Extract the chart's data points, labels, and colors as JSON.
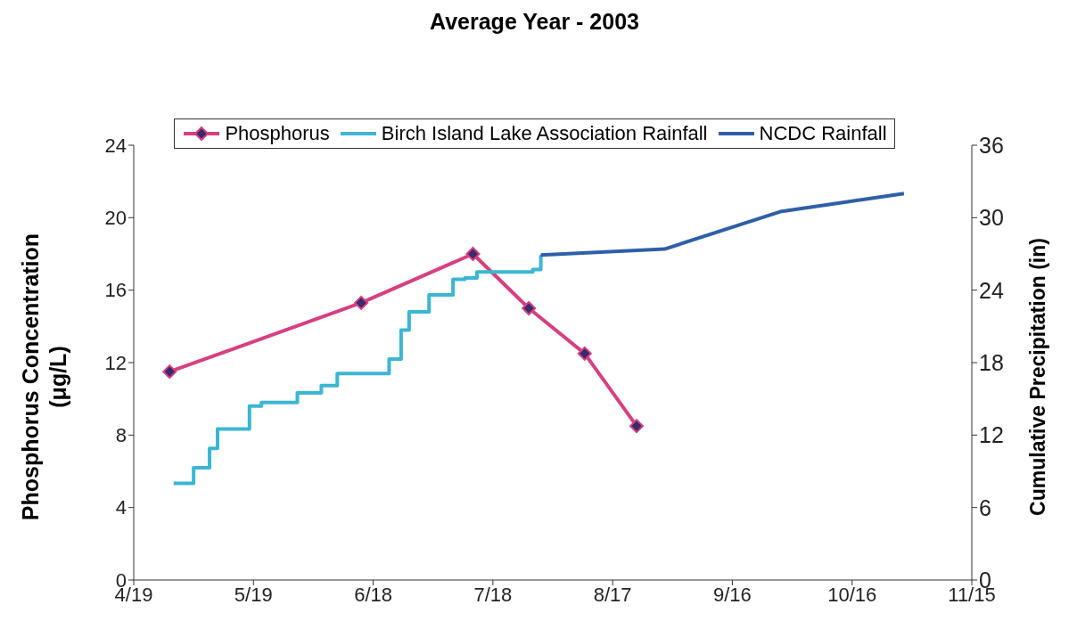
{
  "chart_data": {
    "type": "line",
    "title": "Average Year - 2003",
    "ylabel": "Phosphorus Concentration (μg/L)",
    "y2label": "Cumulative Precipitation (in)",
    "xlim": [
      "2003-04-19",
      "2003-11-15"
    ],
    "xticks": [
      {
        "value": "2003-04-19",
        "label": "4/19"
      },
      {
        "value": "2003-05-19",
        "label": "5/19"
      },
      {
        "value": "2003-06-18",
        "label": "6/18"
      },
      {
        "value": "2003-07-18",
        "label": "7/18"
      },
      {
        "value": "2003-08-17",
        "label": "8/17"
      },
      {
        "value": "2003-09-16",
        "label": "9/16"
      },
      {
        "value": "2003-10-16",
        "label": "10/16"
      },
      {
        "value": "2003-11-15",
        "label": "11/15"
      }
    ],
    "ylim": [
      0,
      24
    ],
    "yticks": [
      0,
      4,
      8,
      12,
      16,
      20,
      24
    ],
    "y2lim": [
      0,
      36
    ],
    "y2ticks": [
      0,
      6,
      12,
      18,
      24,
      30,
      36
    ],
    "grid": false,
    "legend": "top",
    "series": [
      {
        "name": "Phosphorus",
        "color": "#d6407f",
        "marker": "diamond",
        "x": [
          "2003-04-28",
          "2003-06-15",
          "2003-07-13",
          "2003-07-27",
          "2003-08-10",
          "2003-08-23"
        ],
        "values": [
          11.5,
          15.3,
          18.0,
          15.0,
          12.5,
          8.5
        ]
      },
      {
        "name": "Birch Island Lake Association Rainfall",
        "type": "step",
        "axis": "y2",
        "color": "#3cb6d2",
        "marker": "none",
        "x": [
          "2003-04-29",
          "2003-05-04",
          "2003-05-08",
          "2003-05-10",
          "2003-05-18",
          "2003-05-21",
          "2003-05-30",
          "2003-06-05",
          "2003-06-09",
          "2003-06-22",
          "2003-06-25",
          "2003-06-27",
          "2003-07-02",
          "2003-07-08",
          "2003-07-11",
          "2003-07-14",
          "2003-07-28",
          "2003-07-30"
        ],
        "values": [
          8.0,
          9.3,
          10.9,
          12.5,
          14.4,
          14.7,
          15.5,
          16.1,
          17.1,
          18.3,
          20.7,
          22.2,
          23.6,
          24.9,
          25.0,
          25.5,
          25.7,
          26.9
        ]
      },
      {
        "name": "NCDC Rainfall",
        "axis": "y2",
        "color": "#2f5fa8",
        "marker": "none",
        "x": [
          "2003-07-30",
          "2003-08-30",
          "2003-09-28",
          "2003-10-29"
        ],
        "values": [
          26.9,
          27.4,
          30.5,
          32.0
        ]
      }
    ]
  }
}
